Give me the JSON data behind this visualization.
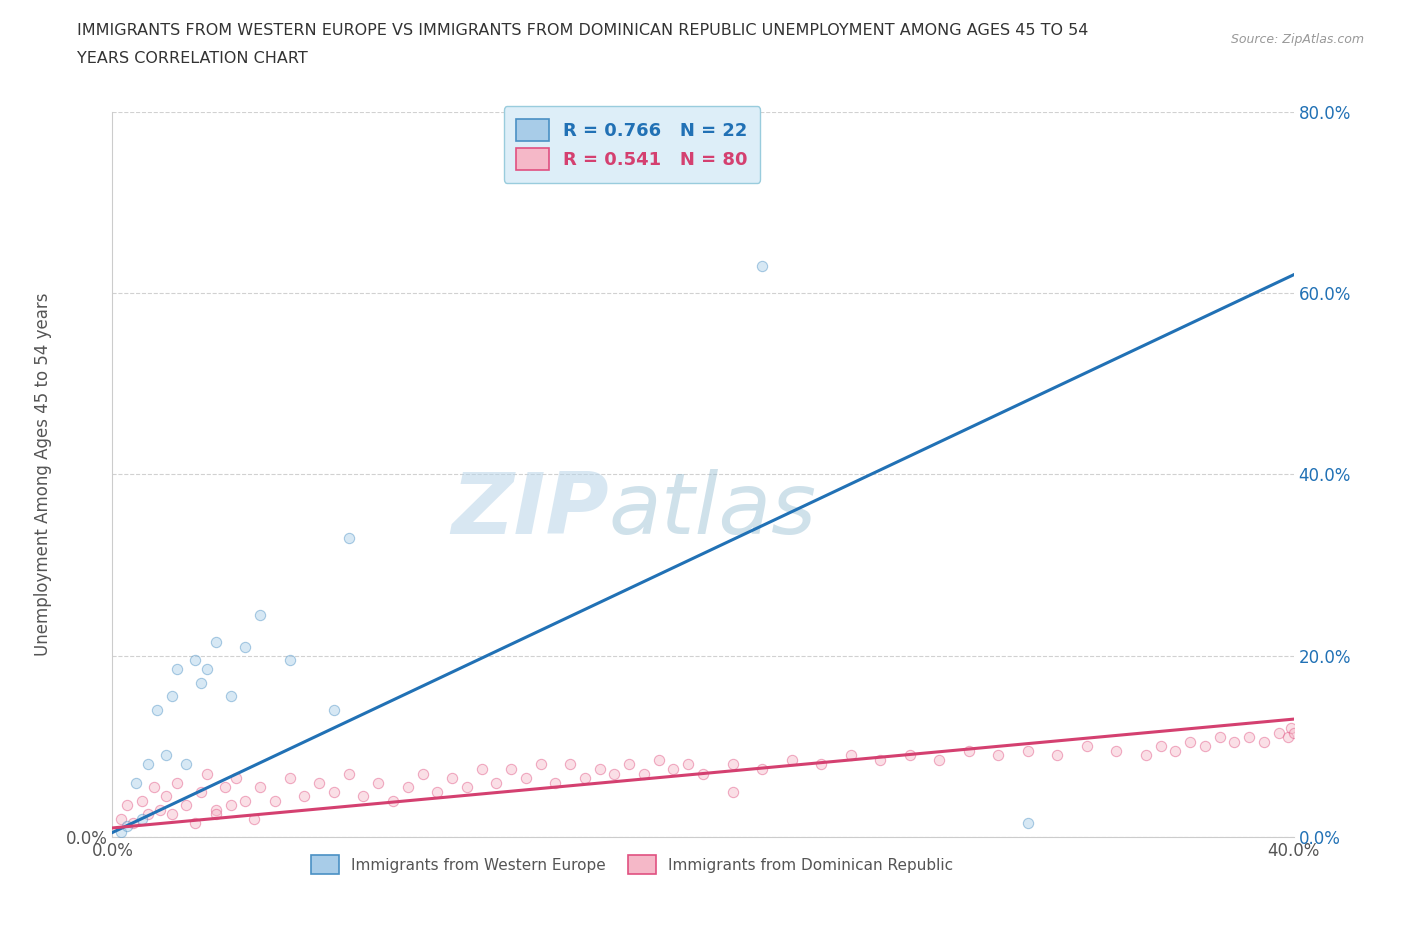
{
  "title_line1": "IMMIGRANTS FROM WESTERN EUROPE VS IMMIGRANTS FROM DOMINICAN REPUBLIC UNEMPLOYMENT AMONG AGES 45 TO 54",
  "title_line2": "YEARS CORRELATION CHART",
  "source": "Source: ZipAtlas.com",
  "ylabel": "Unemployment Among Ages 45 to 54 years",
  "xlim": [
    0.0,
    0.4
  ],
  "ylim": [
    0.0,
    0.8
  ],
  "xticks": [
    0.0,
    0.05,
    0.1,
    0.15,
    0.2,
    0.25,
    0.3,
    0.35,
    0.4
  ],
  "yticks": [
    0.0,
    0.2,
    0.4,
    0.6,
    0.8
  ],
  "xtick_labels_show": [
    "0.0%",
    "40.0%"
  ],
  "ytick_labels_left": [
    "0.0%",
    "",
    "",
    "",
    ""
  ],
  "ytick_labels_right": [
    "",
    "20.0%",
    "40.0%",
    "60.0%",
    "80.0%"
  ],
  "blue_R": 0.766,
  "blue_N": 22,
  "pink_R": 0.541,
  "pink_N": 80,
  "blue_color": "#a8cce8",
  "pink_color": "#f5b8c8",
  "blue_edge_color": "#4a90c4",
  "pink_edge_color": "#e05080",
  "blue_line_color": "#2171b5",
  "pink_line_color": "#d44070",
  "blue_scatter_x": [
    0.003,
    0.005,
    0.008,
    0.01,
    0.012,
    0.015,
    0.018,
    0.02,
    0.022,
    0.025,
    0.028,
    0.03,
    0.032,
    0.035,
    0.04,
    0.045,
    0.05,
    0.06,
    0.075,
    0.08,
    0.22,
    0.31
  ],
  "blue_scatter_y": [
    0.005,
    0.012,
    0.06,
    0.02,
    0.08,
    0.14,
    0.09,
    0.155,
    0.185,
    0.08,
    0.195,
    0.17,
    0.185,
    0.215,
    0.155,
    0.21,
    0.245,
    0.195,
    0.14,
    0.33,
    0.63,
    0.015
  ],
  "pink_scatter_x": [
    0.003,
    0.005,
    0.007,
    0.01,
    0.012,
    0.014,
    0.016,
    0.018,
    0.02,
    0.022,
    0.025,
    0.028,
    0.03,
    0.032,
    0.035,
    0.038,
    0.04,
    0.042,
    0.045,
    0.048,
    0.05,
    0.055,
    0.06,
    0.065,
    0.07,
    0.075,
    0.08,
    0.085,
    0.09,
    0.095,
    0.1,
    0.105,
    0.11,
    0.115,
    0.12,
    0.125,
    0.13,
    0.135,
    0.14,
    0.145,
    0.15,
    0.155,
    0.16,
    0.165,
    0.17,
    0.175,
    0.18,
    0.185,
    0.19,
    0.195,
    0.2,
    0.21,
    0.22,
    0.23,
    0.24,
    0.25,
    0.26,
    0.27,
    0.28,
    0.29,
    0.3,
    0.31,
    0.32,
    0.33,
    0.34,
    0.35,
    0.355,
    0.36,
    0.365,
    0.37,
    0.375,
    0.38,
    0.385,
    0.39,
    0.395,
    0.398,
    0.399,
    0.4,
    0.035,
    0.21
  ],
  "pink_scatter_y": [
    0.02,
    0.035,
    0.015,
    0.04,
    0.025,
    0.055,
    0.03,
    0.045,
    0.025,
    0.06,
    0.035,
    0.015,
    0.05,
    0.07,
    0.03,
    0.055,
    0.035,
    0.065,
    0.04,
    0.02,
    0.055,
    0.04,
    0.065,
    0.045,
    0.06,
    0.05,
    0.07,
    0.045,
    0.06,
    0.04,
    0.055,
    0.07,
    0.05,
    0.065,
    0.055,
    0.075,
    0.06,
    0.075,
    0.065,
    0.08,
    0.06,
    0.08,
    0.065,
    0.075,
    0.07,
    0.08,
    0.07,
    0.085,
    0.075,
    0.08,
    0.07,
    0.08,
    0.075,
    0.085,
    0.08,
    0.09,
    0.085,
    0.09,
    0.085,
    0.095,
    0.09,
    0.095,
    0.09,
    0.1,
    0.095,
    0.09,
    0.1,
    0.095,
    0.105,
    0.1,
    0.11,
    0.105,
    0.11,
    0.105,
    0.115,
    0.11,
    0.12,
    0.115,
    0.025,
    0.05
  ],
  "blue_trend_x": [
    0.0,
    0.4
  ],
  "blue_trend_y": [
    0.005,
    0.62
  ],
  "pink_trend_x": [
    0.0,
    0.4
  ],
  "pink_trend_y": [
    0.01,
    0.13
  ],
  "watermark_zip": "ZIP",
  "watermark_atlas": "atlas",
  "background_color": "#ffffff",
  "legend_box_color": "#ddeef8",
  "legend_edge_color": "#99ccdd",
  "marker_size": 55,
  "marker_alpha": 0.45,
  "line_width": 2.2
}
